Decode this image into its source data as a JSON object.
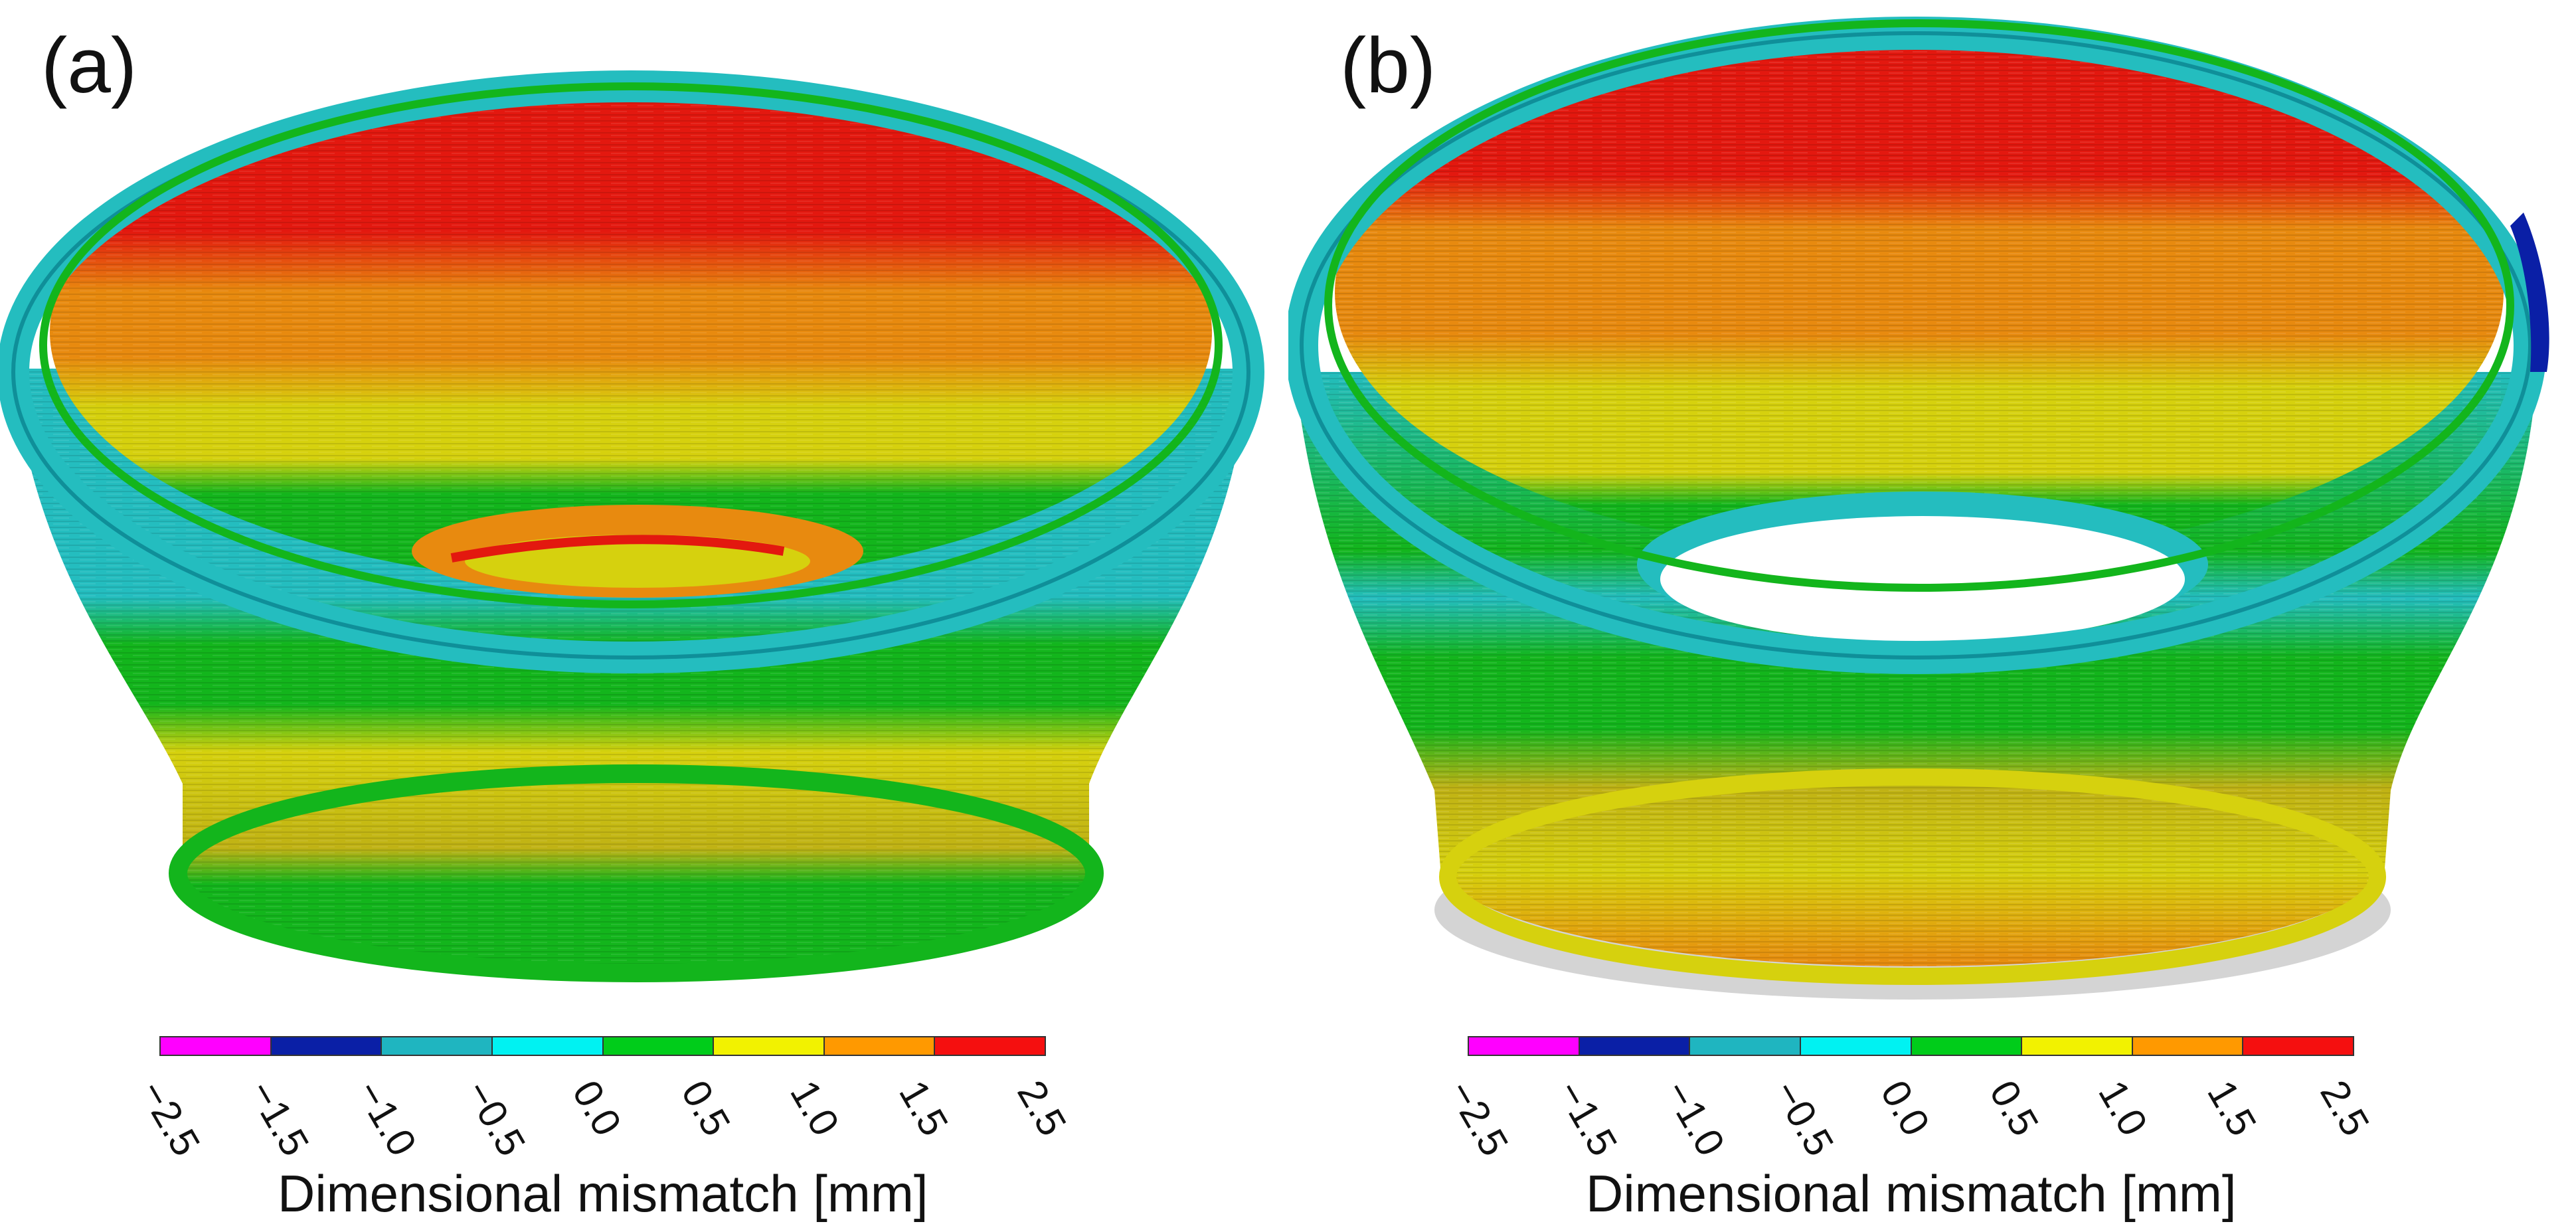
{
  "panels": [
    {
      "label": "(a)",
      "description": "bowl-shaped part deviation map with closed base"
    },
    {
      "label": "(b)",
      "description": "ring-shaped part deviation map with open base"
    }
  ],
  "colorbar": {
    "ticks": [
      "−2.5",
      "−1.5",
      "−1.0",
      "−0.5",
      "0.0",
      "0.5",
      "1.0",
      "1.5",
      "2.5"
    ],
    "colors": [
      "#ff00ff",
      "#0a1fa6",
      "#1fb5c0",
      "#00f2f2",
      "#00cc1a",
      "#f2f200",
      "#ff9900",
      "#f50f0f"
    ],
    "title": "Dimensional mismatch [mm]"
  },
  "palette": {
    "red": "#e3180f",
    "orange": "#e88a0f",
    "yellow": "#d6d10e",
    "green": "#13b51c",
    "cyan": "#24bdbf",
    "blue": "#0a1fa6",
    "grey": "#c8c8c8"
  }
}
